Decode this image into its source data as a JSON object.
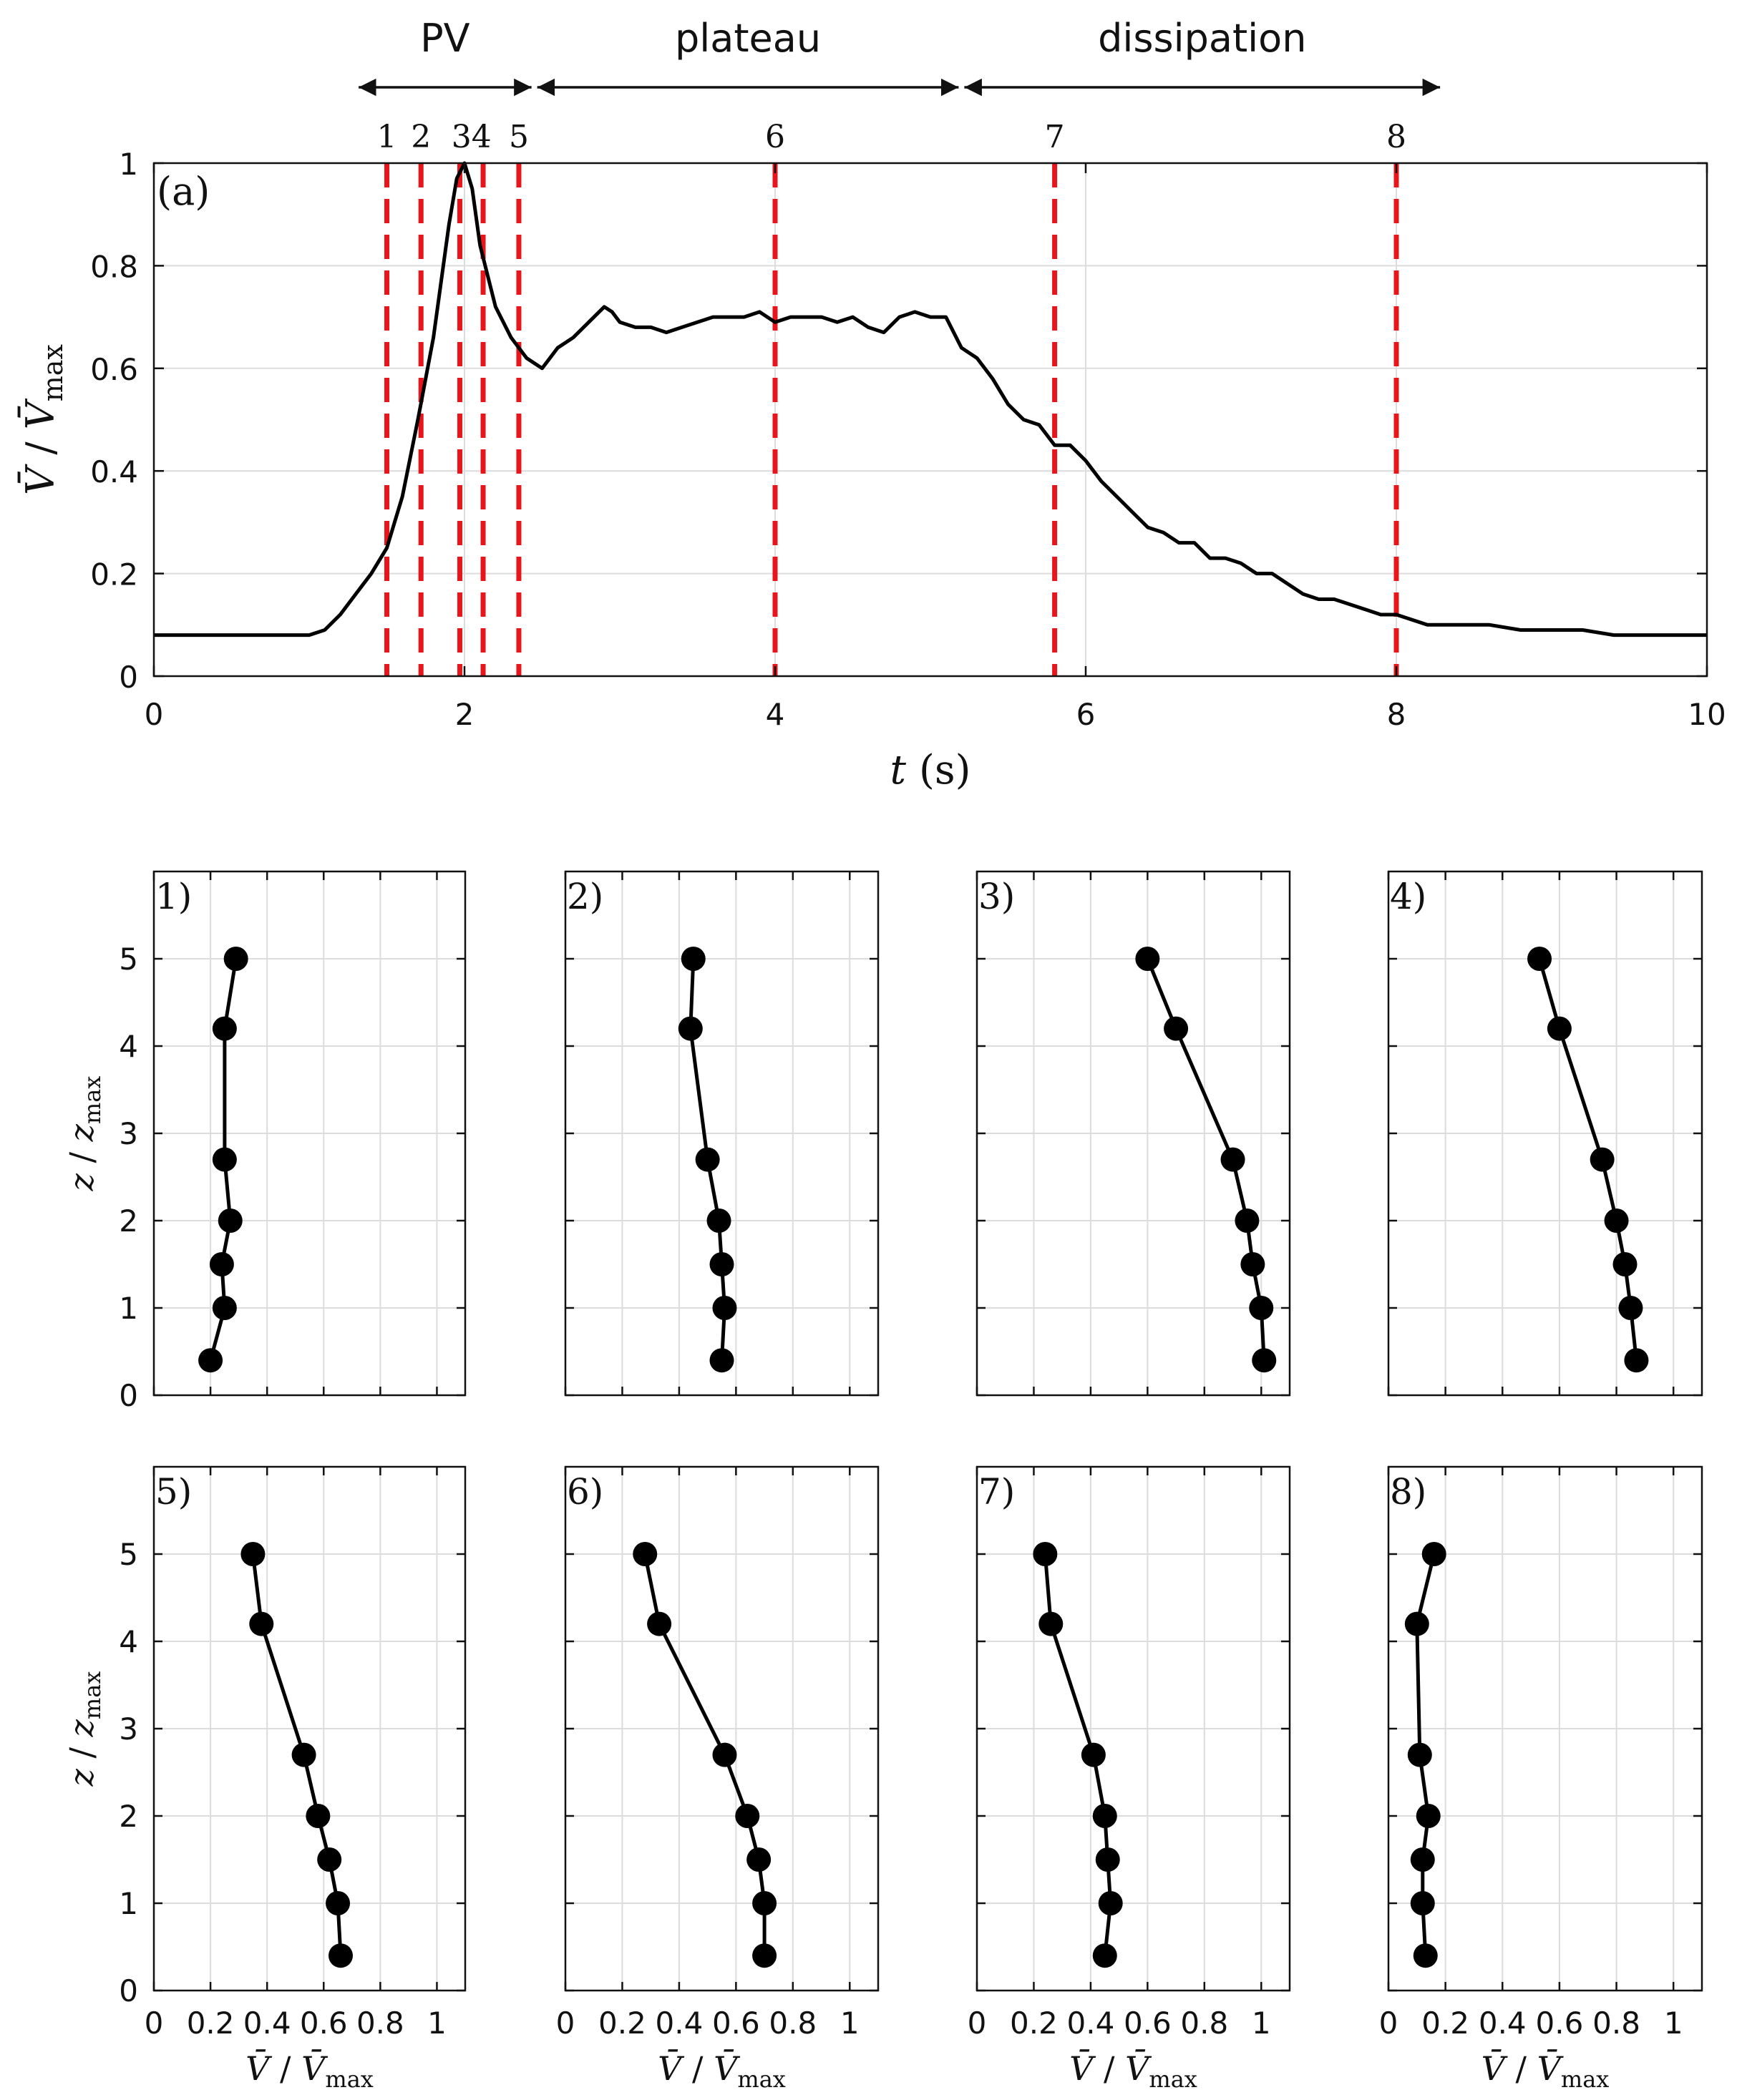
{
  "chart_data": [
    {
      "type": "line",
      "panel_label": "(a)",
      "xlabel_var": "t",
      "xlabel_unit": "(s)",
      "ylabel_num": "V̄",
      "ylabel_den": "V̄",
      "ylabel_sub": "max",
      "xlim": [
        0,
        10
      ],
      "ylim": [
        0,
        1
      ],
      "xticks": [
        "0",
        "2",
        "4",
        "6",
        "8",
        "10"
      ],
      "yticks": [
        "0",
        "0.2",
        "0.4",
        "0.6",
        "0.8",
        "1"
      ],
      "phases": [
        {
          "label": "PV",
          "t_start": 1.3,
          "t_end": 2.45
        },
        {
          "label": "plateau",
          "t_start": 2.45,
          "t_end": 5.2
        },
        {
          "label": "dissipation",
          "t_start": 5.2,
          "t_end": 8.3
        }
      ],
      "markers": [
        {
          "label": "1",
          "t": 1.5
        },
        {
          "label": "2",
          "t": 1.72
        },
        {
          "label": "3",
          "t": 1.97
        },
        {
          "label": "4",
          "t": 2.12
        },
        {
          "label": "5",
          "t": 2.35
        },
        {
          "label": "6",
          "t": 4.0
        },
        {
          "label": "7",
          "t": 5.8
        },
        {
          "label": "8",
          "t": 8.0
        }
      ],
      "marker_label_34": "34",
      "series": [
        {
          "name": "V/Vmax",
          "x": [
            0,
            0.5,
            1.0,
            1.1,
            1.2,
            1.3,
            1.4,
            1.5,
            1.6,
            1.7,
            1.8,
            1.9,
            1.95,
            2.0,
            2.05,
            2.1,
            2.2,
            2.3,
            2.4,
            2.5,
            2.6,
            2.7,
            2.8,
            2.9,
            2.95,
            3.0,
            3.1,
            3.2,
            3.3,
            3.4,
            3.5,
            3.6,
            3.7,
            3.8,
            3.9,
            4.0,
            4.1,
            4.2,
            4.3,
            4.4,
            4.5,
            4.6,
            4.7,
            4.8,
            4.9,
            5.0,
            5.1,
            5.2,
            5.3,
            5.4,
            5.5,
            5.6,
            5.7,
            5.8,
            5.9,
            6.0,
            6.1,
            6.2,
            6.3,
            6.4,
            6.5,
            6.6,
            6.7,
            6.8,
            6.9,
            7.0,
            7.1,
            7.2,
            7.3,
            7.4,
            7.5,
            7.6,
            7.7,
            7.8,
            7.9,
            8.0,
            8.2,
            8.4,
            8.6,
            8.8,
            9.0,
            9.2,
            9.4,
            9.6,
            9.8,
            10.0
          ],
          "y": [
            0.08,
            0.08,
            0.08,
            0.09,
            0.12,
            0.16,
            0.2,
            0.25,
            0.35,
            0.5,
            0.66,
            0.88,
            0.97,
            1.0,
            0.95,
            0.84,
            0.72,
            0.66,
            0.62,
            0.6,
            0.64,
            0.66,
            0.69,
            0.72,
            0.71,
            0.69,
            0.68,
            0.68,
            0.67,
            0.68,
            0.69,
            0.7,
            0.7,
            0.7,
            0.71,
            0.69,
            0.7,
            0.7,
            0.7,
            0.69,
            0.7,
            0.68,
            0.67,
            0.7,
            0.71,
            0.7,
            0.7,
            0.64,
            0.62,
            0.58,
            0.53,
            0.5,
            0.49,
            0.45,
            0.45,
            0.42,
            0.38,
            0.35,
            0.32,
            0.29,
            0.28,
            0.26,
            0.26,
            0.23,
            0.23,
            0.22,
            0.2,
            0.2,
            0.18,
            0.16,
            0.15,
            0.15,
            0.14,
            0.13,
            0.12,
            0.12,
            0.1,
            0.1,
            0.1,
            0.09,
            0.09,
            0.09,
            0.08,
            0.08,
            0.08,
            0.08
          ]
        }
      ]
    },
    {
      "type": "small-multiples-profile",
      "xlabel_num": "V̄",
      "xlabel_den": "V̄",
      "xlabel_sub": "max",
      "ylabel_var": "z",
      "ylabel_sub": "max",
      "xlim": [
        0,
        1.1
      ],
      "ylim": [
        0,
        6
      ],
      "xticks": [
        "0",
        "0.2",
        "0.4",
        "0.6",
        "0.8",
        "1"
      ],
      "yticks": [
        "0",
        "1",
        "2",
        "3",
        "4",
        "5"
      ],
      "z": [
        0.4,
        1.0,
        1.5,
        2.0,
        2.7,
        4.2,
        5.0
      ],
      "panels": [
        {
          "label": "1)",
          "v": [
            0.2,
            0.25,
            0.24,
            0.27,
            0.25,
            0.25,
            0.29
          ]
        },
        {
          "label": "2)",
          "v": [
            0.55,
            0.56,
            0.55,
            0.54,
            0.5,
            0.44,
            0.45
          ]
        },
        {
          "label": "3)",
          "v": [
            1.01,
            1.0,
            0.97,
            0.95,
            0.9,
            0.7,
            0.6
          ]
        },
        {
          "label": "4)",
          "v": [
            0.87,
            0.85,
            0.83,
            0.8,
            0.75,
            0.6,
            0.53
          ]
        },
        {
          "label": "5)",
          "v": [
            0.66,
            0.65,
            0.62,
            0.58,
            0.53,
            0.38,
            0.35
          ]
        },
        {
          "label": "6)",
          "v": [
            0.7,
            0.7,
            0.68,
            0.64,
            0.56,
            0.33,
            0.28
          ]
        },
        {
          "label": "7)",
          "v": [
            0.45,
            0.47,
            0.46,
            0.45,
            0.41,
            0.26,
            0.24
          ]
        },
        {
          "label": "8)",
          "v": [
            0.13,
            0.12,
            0.12,
            0.14,
            0.11,
            0.1,
            0.16
          ]
        }
      ]
    }
  ]
}
